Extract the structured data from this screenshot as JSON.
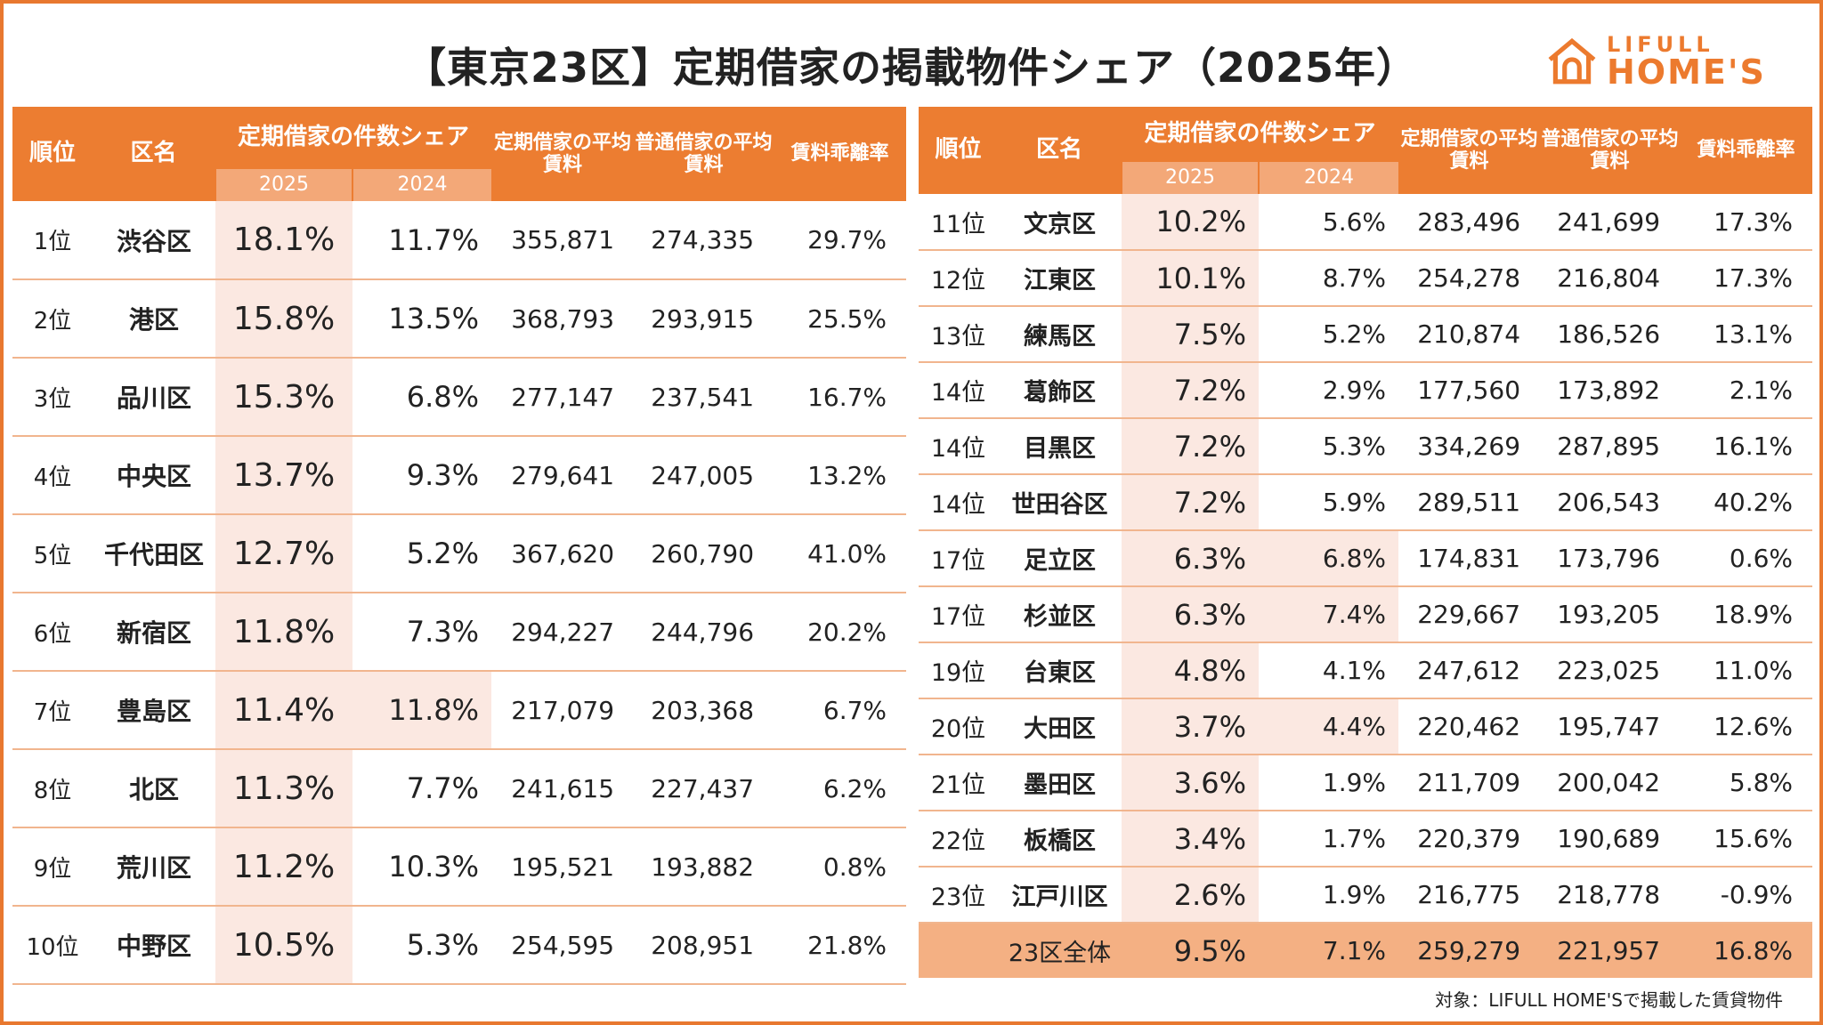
{
  "title": "【東京23区】定期借家の掲載物件シェア（2025年）",
  "logo": {
    "line1": "LIFULL",
    "line2": "HOME'S",
    "icon": "house-icon",
    "color": "#ec7a2e"
  },
  "headers": {
    "rank": "順位",
    "name": "区名",
    "share": "定期借家の件数シェア",
    "y2025": "2025",
    "y2024": "2024",
    "teiki_rent": "定期借家の平均賃料",
    "futsu_rent": "普通借家の平均賃料",
    "gap": "賃料乖離率"
  },
  "colors": {
    "accent": "#ec7d31",
    "highlight": "#fbe8e1",
    "total_bg": "#f4b083"
  },
  "rows": [
    {
      "rank": "1位",
      "name": "渋谷区",
      "s2025": "18.1%",
      "s2024": "11.7%",
      "teiki": "355,871",
      "futsu": "274,335",
      "gap": "29.7%",
      "hl2024": false
    },
    {
      "rank": "2位",
      "name": "港区",
      "s2025": "15.8%",
      "s2024": "13.5%",
      "teiki": "368,793",
      "futsu": "293,915",
      "gap": "25.5%",
      "hl2024": false
    },
    {
      "rank": "3位",
      "name": "品川区",
      "s2025": "15.3%",
      "s2024": "6.8%",
      "teiki": "277,147",
      "futsu": "237,541",
      "gap": "16.7%",
      "hl2024": false
    },
    {
      "rank": "4位",
      "name": "中央区",
      "s2025": "13.7%",
      "s2024": "9.3%",
      "teiki": "279,641",
      "futsu": "247,005",
      "gap": "13.2%",
      "hl2024": false
    },
    {
      "rank": "5位",
      "name": "千代田区",
      "s2025": "12.7%",
      "s2024": "5.2%",
      "teiki": "367,620",
      "futsu": "260,790",
      "gap": "41.0%",
      "hl2024": false
    },
    {
      "rank": "6位",
      "name": "新宿区",
      "s2025": "11.8%",
      "s2024": "7.3%",
      "teiki": "294,227",
      "futsu": "244,796",
      "gap": "20.2%",
      "hl2024": false
    },
    {
      "rank": "7位",
      "name": "豊島区",
      "s2025": "11.4%",
      "s2024": "11.8%",
      "teiki": "217,079",
      "futsu": "203,368",
      "gap": "6.7%",
      "hl2024": true
    },
    {
      "rank": "8位",
      "name": "北区",
      "s2025": "11.3%",
      "s2024": "7.7%",
      "teiki": "241,615",
      "futsu": "227,437",
      "gap": "6.2%",
      "hl2024": false
    },
    {
      "rank": "9位",
      "name": "荒川区",
      "s2025": "11.2%",
      "s2024": "10.3%",
      "teiki": "195,521",
      "futsu": "193,882",
      "gap": "0.8%",
      "hl2024": false
    },
    {
      "rank": "10位",
      "name": "中野区",
      "s2025": "10.5%",
      "s2024": "5.3%",
      "teiki": "254,595",
      "futsu": "208,951",
      "gap": "21.8%",
      "hl2024": false
    },
    {
      "rank": "11位",
      "name": "文京区",
      "s2025": "10.2%",
      "s2024": "5.6%",
      "teiki": "283,496",
      "futsu": "241,699",
      "gap": "17.3%",
      "hl2024": false
    },
    {
      "rank": "12位",
      "name": "江東区",
      "s2025": "10.1%",
      "s2024": "8.7%",
      "teiki": "254,278",
      "futsu": "216,804",
      "gap": "17.3%",
      "hl2024": false
    },
    {
      "rank": "13位",
      "name": "練馬区",
      "s2025": "7.5%",
      "s2024": "5.2%",
      "teiki": "210,874",
      "futsu": "186,526",
      "gap": "13.1%",
      "hl2024": false
    },
    {
      "rank": "14位",
      "name": "葛飾区",
      "s2025": "7.2%",
      "s2024": "2.9%",
      "teiki": "177,560",
      "futsu": "173,892",
      "gap": "2.1%",
      "hl2024": false
    },
    {
      "rank": "14位",
      "name": "目黒区",
      "s2025": "7.2%",
      "s2024": "5.3%",
      "teiki": "334,269",
      "futsu": "287,895",
      "gap": "16.1%",
      "hl2024": false
    },
    {
      "rank": "14位",
      "name": "世田谷区",
      "s2025": "7.2%",
      "s2024": "5.9%",
      "teiki": "289,511",
      "futsu": "206,543",
      "gap": "40.2%",
      "hl2024": false
    },
    {
      "rank": "17位",
      "name": "足立区",
      "s2025": "6.3%",
      "s2024": "6.8%",
      "teiki": "174,831",
      "futsu": "173,796",
      "gap": "0.6%",
      "hl2024": true
    },
    {
      "rank": "17位",
      "name": "杉並区",
      "s2025": "6.3%",
      "s2024": "7.4%",
      "teiki": "229,667",
      "futsu": "193,205",
      "gap": "18.9%",
      "hl2024": true
    },
    {
      "rank": "19位",
      "name": "台東区",
      "s2025": "4.8%",
      "s2024": "4.1%",
      "teiki": "247,612",
      "futsu": "223,025",
      "gap": "11.0%",
      "hl2024": false
    },
    {
      "rank": "20位",
      "name": "大田区",
      "s2025": "3.7%",
      "s2024": "4.4%",
      "teiki": "220,462",
      "futsu": "195,747",
      "gap": "12.6%",
      "hl2024": true
    },
    {
      "rank": "21位",
      "name": "墨田区",
      "s2025": "3.6%",
      "s2024": "1.9%",
      "teiki": "211,709",
      "futsu": "200,042",
      "gap": "5.8%",
      "hl2024": false
    },
    {
      "rank": "22位",
      "name": "板橋区",
      "s2025": "3.4%",
      "s2024": "1.7%",
      "teiki": "220,379",
      "futsu": "190,689",
      "gap": "15.6%",
      "hl2024": false
    },
    {
      "rank": "23位",
      "name": "江戸川区",
      "s2025": "2.6%",
      "s2024": "1.9%",
      "teiki": "216,775",
      "futsu": "218,778",
      "gap": "-0.9%",
      "hl2024": false
    }
  ],
  "total": {
    "name": "23区全体",
    "s2025": "9.5%",
    "s2024": "7.1%",
    "teiki": "259,279",
    "futsu": "221,957",
    "gap": "16.8%"
  },
  "footnote": "対象：LIFULL HOME'Sで掲載した賃貸物件"
}
